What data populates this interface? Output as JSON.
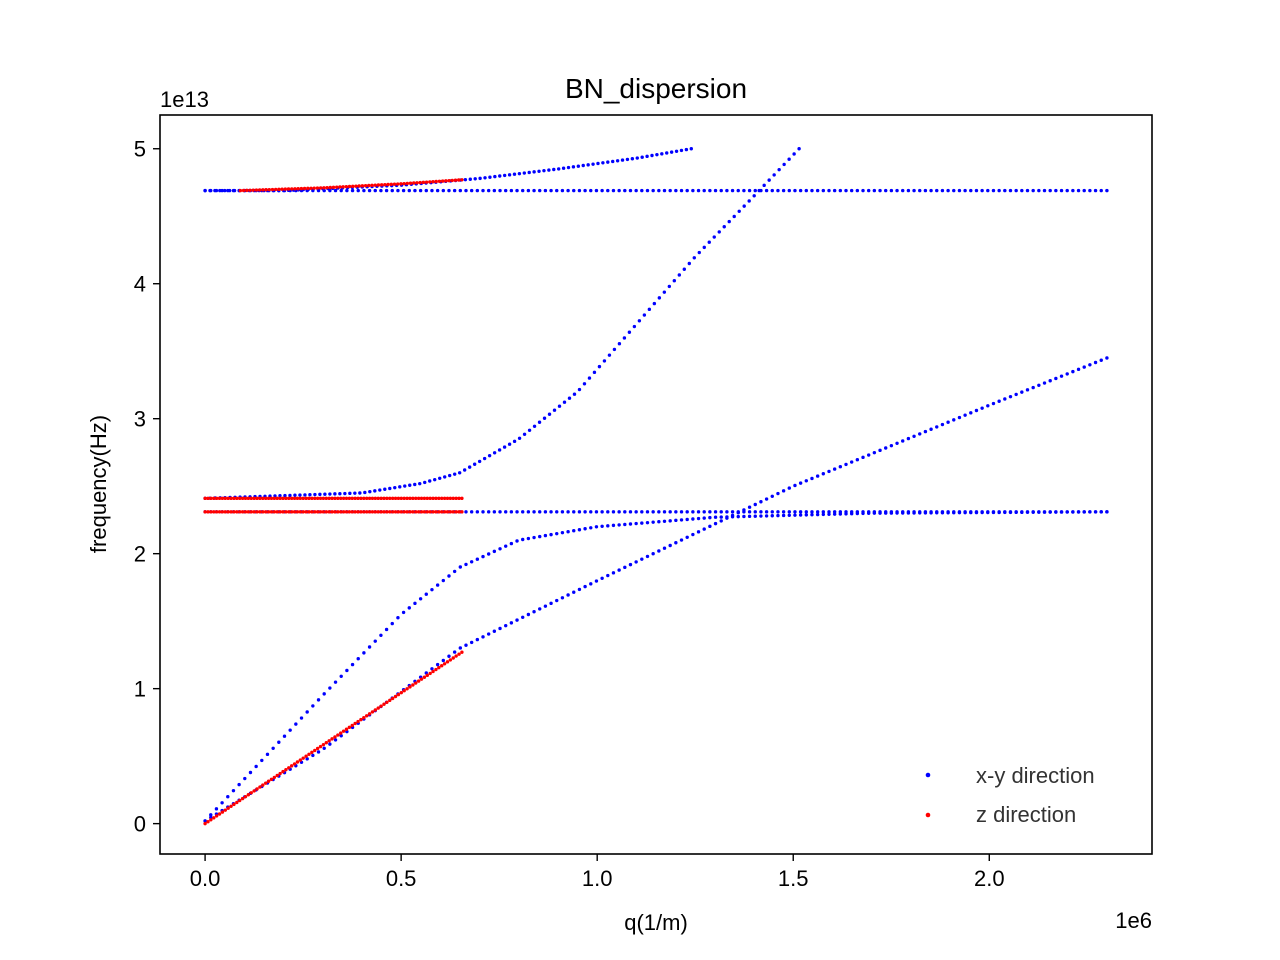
{
  "chart_data": {
    "type": "scatter",
    "title": "BN_dispersion",
    "xlabel": "q(1/m)",
    "ylabel": "frequency(Hz)",
    "x_offset_label": "1e6",
    "y_offset_label": "1e13",
    "xlim": [
      -0.115,
      2.415
    ],
    "ylim": [
      -0.225,
      5.25
    ],
    "xticks": [
      0.0,
      0.5,
      1.0,
      1.5,
      2.0
    ],
    "xtick_labels": [
      "0.0",
      "0.5",
      "1.0",
      "1.5",
      "2.0"
    ],
    "yticks": [
      0,
      1,
      2,
      3,
      4,
      5
    ],
    "ytick_labels": [
      "0",
      "1",
      "2",
      "3",
      "4",
      "5"
    ],
    "grid": false,
    "legend_position": "bottom-right",
    "colors": {
      "x-y direction": "#0000ff",
      "z direction": "#ff0000"
    },
    "series": [
      {
        "name": "x-y direction",
        "color": "#0000ff",
        "branches": [
          {
            "x_range": [
              0.0,
              2.3
            ],
            "points": 160,
            "curve": [
              [
                0.0,
                0.02
              ],
              [
                0.3,
                0.55
              ],
              [
                0.65,
                1.3
              ],
              [
                1.0,
                1.8
              ],
              [
                1.5,
                2.5
              ],
              [
                2.0,
                3.1
              ],
              [
                2.3,
                3.45
              ]
            ]
          },
          {
            "x_range": [
              0.0,
              2.3
            ],
            "points": 160,
            "curve": [
              [
                0.0,
                0.02
              ],
              [
                0.3,
                0.95
              ],
              [
                0.5,
                1.55
              ],
              [
                0.65,
                1.9
              ],
              [
                0.8,
                2.1
              ],
              [
                1.0,
                2.2
              ],
              [
                1.3,
                2.27
              ],
              [
                1.7,
                2.3
              ],
              [
                2.3,
                2.31
              ]
            ]
          },
          {
            "x_range": [
              0.0,
              2.3
            ],
            "points": 160,
            "curve": [
              [
                0.0,
                2.31
              ],
              [
                2.3,
                2.31
              ]
            ]
          },
          {
            "x_range": [
              0.0,
              1.515
            ],
            "points": 120,
            "curve": [
              [
                0.0,
                2.41
              ],
              [
                0.4,
                2.45
              ],
              [
                0.55,
                2.52
              ],
              [
                0.65,
                2.6
              ],
              [
                0.8,
                2.85
              ],
              [
                0.95,
                3.2
              ],
              [
                1.1,
                3.7
              ],
              [
                1.25,
                4.2
              ],
              [
                1.4,
                4.65
              ],
              [
                1.515,
                5.0
              ]
            ]
          },
          {
            "x_range": [
              0.0,
              2.3
            ],
            "points": 160,
            "curve": [
              [
                0.0,
                4.69
              ],
              [
                2.3,
                4.69
              ]
            ]
          },
          {
            "x_range": [
              0.0,
              1.24
            ],
            "points": 100,
            "curve": [
              [
                0.0,
                4.69
              ],
              [
                0.2,
                4.69
              ],
              [
                0.5,
                4.73
              ],
              [
                0.7,
                4.78
              ],
              [
                0.9,
                4.85
              ],
              [
                1.1,
                4.93
              ],
              [
                1.24,
                5.0
              ]
            ]
          }
        ]
      },
      {
        "name": "z direction",
        "color": "#ff0000",
        "branches": [
          {
            "x_range": [
              0.0,
              0.655
            ],
            "points": 90,
            "curve": [
              [
                0.0,
                0.0
              ],
              [
                0.655,
                1.27
              ]
            ]
          },
          {
            "x_range": [
              0.0,
              0.655
            ],
            "points": 90,
            "curve": [
              [
                0.0,
                2.31
              ],
              [
                0.655,
                2.31
              ]
            ]
          },
          {
            "x_range": [
              0.0,
              0.655
            ],
            "points": 90,
            "curve": [
              [
                0.0,
                2.41
              ],
              [
                0.655,
                2.41
              ]
            ]
          },
          {
            "x_range": [
              0.09,
              0.655
            ],
            "points": 70,
            "curve": [
              [
                0.09,
                4.69
              ],
              [
                0.3,
                4.71
              ],
              [
                0.5,
                4.74
              ],
              [
                0.655,
                4.77
              ]
            ]
          }
        ]
      }
    ]
  }
}
